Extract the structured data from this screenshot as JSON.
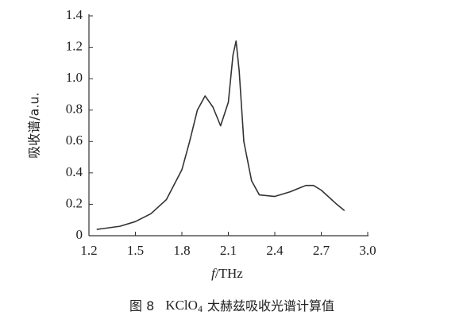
{
  "chart_data": {
    "type": "line",
    "x_label_italic": "f",
    "x_label_rest": "/THz",
    "y_label": "吸收谱/a.u.",
    "caption_figure": "图 8",
    "caption_formula": "KClO",
    "caption_subscript": "4",
    "caption_text": "太赫兹吸收光谱计算值",
    "x": [
      1.25,
      1.4,
      1.5,
      1.6,
      1.7,
      1.8,
      1.85,
      1.9,
      1.95,
      2.0,
      2.05,
      2.1,
      2.13,
      2.15,
      2.17,
      2.2,
      2.25,
      2.3,
      2.4,
      2.5,
      2.6,
      2.65,
      2.7,
      2.8,
      2.85
    ],
    "series": [
      {
        "color": "#333333",
        "values": [
          0.04,
          0.06,
          0.09,
          0.14,
          0.23,
          0.42,
          0.6,
          0.8,
          0.89,
          0.82,
          0.7,
          0.85,
          1.15,
          1.24,
          1.05,
          0.6,
          0.35,
          0.26,
          0.25,
          0.28,
          0.32,
          0.32,
          0.29,
          0.2,
          0.16
        ]
      }
    ],
    "xlim": [
      1.2,
      3.0
    ],
    "xticks": [
      1.2,
      1.5,
      1.8,
      2.1,
      2.4,
      2.7,
      {
        "value": 3.0,
        "label": "3.0"
      }
    ],
    "ylim": [
      0,
      1.4
    ],
    "yticks": [
      0,
      0.2,
      0.4,
      0.6,
      0.8,
      {
        "value": 1.0,
        "label": "1.0"
      },
      1.2,
      1.4
    ]
  }
}
